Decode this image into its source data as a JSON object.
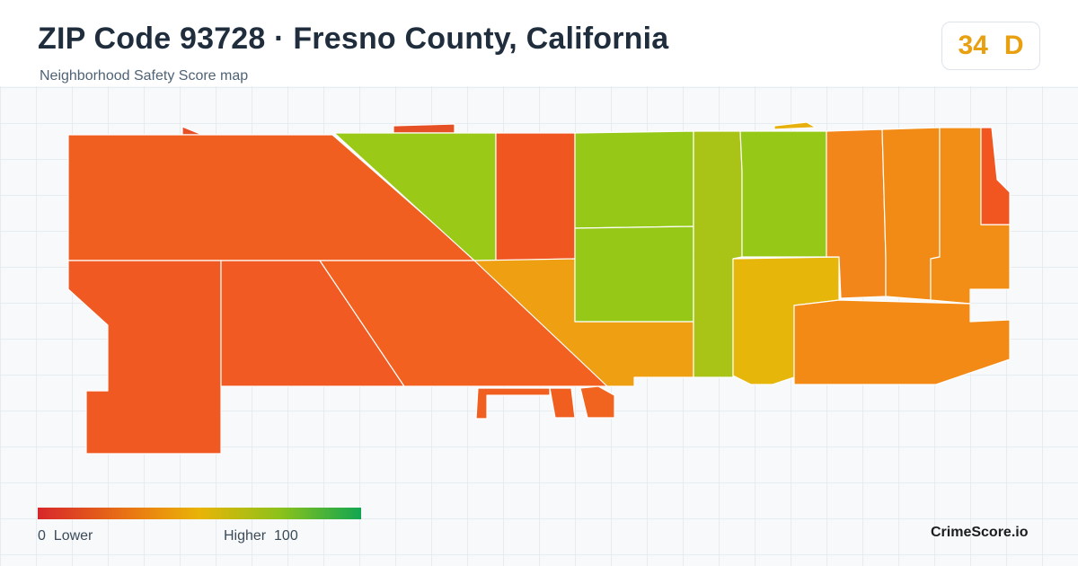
{
  "header": {
    "title": "ZIP Code 93728 · Fresno County, California",
    "subtitle": "Neighborhood Safety Score map"
  },
  "score": {
    "value": "34",
    "grade": "D",
    "color": "#e8a010"
  },
  "legend": {
    "low_value": "0",
    "low_label": "Lower",
    "high_label": "Higher",
    "high_value": "100",
    "colors": [
      "#d7262b",
      "#ea7a12",
      "#e9b407",
      "#8cc21b",
      "#12a651"
    ]
  },
  "brand": "CrimeScore.io",
  "map": {
    "regions": [
      {
        "id": "west-main",
        "color": "#f15f20"
      },
      {
        "id": "west-lower",
        "color": "#f05a22"
      },
      {
        "id": "southwest-block",
        "color": "#f15a22"
      },
      {
        "id": "diagonal-corridor",
        "color": "#f26120"
      },
      {
        "id": "north-green-triangle",
        "color": "#9ac918"
      },
      {
        "id": "north-red-block",
        "color": "#f05620"
      },
      {
        "id": "central-orange",
        "color": "#ee9f12"
      },
      {
        "id": "south-strip-left",
        "color": "#f05f20"
      },
      {
        "id": "south-strip-mid",
        "color": "#f15f20"
      },
      {
        "id": "south-strip-right",
        "color": "#f16420"
      },
      {
        "id": "green-north-center",
        "color": "#96c917"
      },
      {
        "id": "green-mid-center",
        "color": "#96c917"
      },
      {
        "id": "olive-strip",
        "color": "#aac317"
      },
      {
        "id": "green-east",
        "color": "#96c917"
      },
      {
        "id": "yellow-south",
        "color": "#e6b60b"
      },
      {
        "id": "east-orange-1",
        "color": "#f3861a"
      },
      {
        "id": "east-orange-2",
        "color": "#f28b15"
      },
      {
        "id": "east-orange-3",
        "color": "#f28e15"
      },
      {
        "id": "east-red-edge",
        "color": "#f15520"
      },
      {
        "id": "east-orange-bottom",
        "color": "#f28a15"
      },
      {
        "id": "north-sliver-red",
        "color": "#e55025"
      },
      {
        "id": "north-sliver-yellow",
        "color": "#e7b00c"
      }
    ]
  }
}
